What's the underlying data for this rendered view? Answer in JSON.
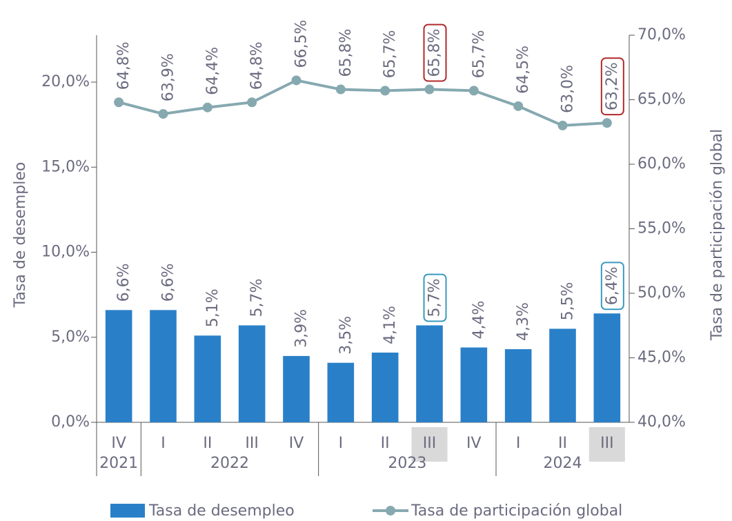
{
  "chart_data": {
    "type": "bar",
    "categories": [
      "IV",
      "I",
      "II",
      "III",
      "IV",
      "I",
      "II",
      "III",
      "IV",
      "I",
      "II",
      "III"
    ],
    "years": [
      {
        "name": "2021",
        "count": 1
      },
      {
        "name": "2022",
        "count": 4
      },
      {
        "name": "2023",
        "count": 4
      },
      {
        "name": "2024",
        "count": 3
      }
    ],
    "highlighted_categories": [
      7,
      11
    ],
    "y_label": "Tasa de desempleo",
    "y2_label": "Tasa de participación global",
    "ylim": [
      0,
      20
    ],
    "yticks": [
      {
        "value": 0,
        "label": "0,0%"
      },
      {
        "value": 5,
        "label": "5,0%"
      },
      {
        "value": 10,
        "label": "10,0%"
      },
      {
        "value": 15,
        "label": "15,0%"
      },
      {
        "value": 20,
        "label": "20,0%"
      }
    ],
    "y2lim": [
      40,
      70
    ],
    "y2ticks": [
      {
        "value": 40,
        "label": "40,0%"
      },
      {
        "value": 45,
        "label": "45,0%"
      },
      {
        "value": 50,
        "label": "50,0%"
      },
      {
        "value": 55,
        "label": "55,0%"
      },
      {
        "value": 60,
        "label": "60,0%"
      },
      {
        "value": 65,
        "label": "65,0%"
      },
      {
        "value": 70,
        "label": "70,0%"
      }
    ],
    "series": [
      {
        "name": "Tasa de desempleo",
        "type": "bar",
        "color": "#2a80c8",
        "highlight_color": "#3a9abf",
        "values": [
          6.6,
          6.6,
          5.1,
          5.7,
          3.9,
          3.5,
          4.1,
          5.7,
          4.4,
          4.3,
          5.5,
          6.4
        ],
        "value_labels": [
          "6,6%",
          "6,6%",
          "5,1%",
          "5,7%",
          "3,9%",
          "3,5%",
          "4,1%",
          "5,7%",
          "4,4%",
          "4,3%",
          "5,5%",
          "6,4%"
        ]
      },
      {
        "name": "Tasa de participación global",
        "type": "line",
        "axis": "y2",
        "color": "#86a9b0",
        "highlight_color": "#b02a2a",
        "values": [
          64.8,
          63.9,
          64.4,
          64.8,
          66.5,
          65.8,
          65.7,
          65.8,
          65.7,
          64.5,
          63.0,
          63.2
        ],
        "value_labels": [
          "64,8%",
          "63,9%",
          "64,4%",
          "64,8%",
          "66,5%",
          "65,8%",
          "65,7%",
          "65,8%",
          "65,7%",
          "64,5%",
          "63,0%",
          "63,2%"
        ]
      }
    ]
  }
}
